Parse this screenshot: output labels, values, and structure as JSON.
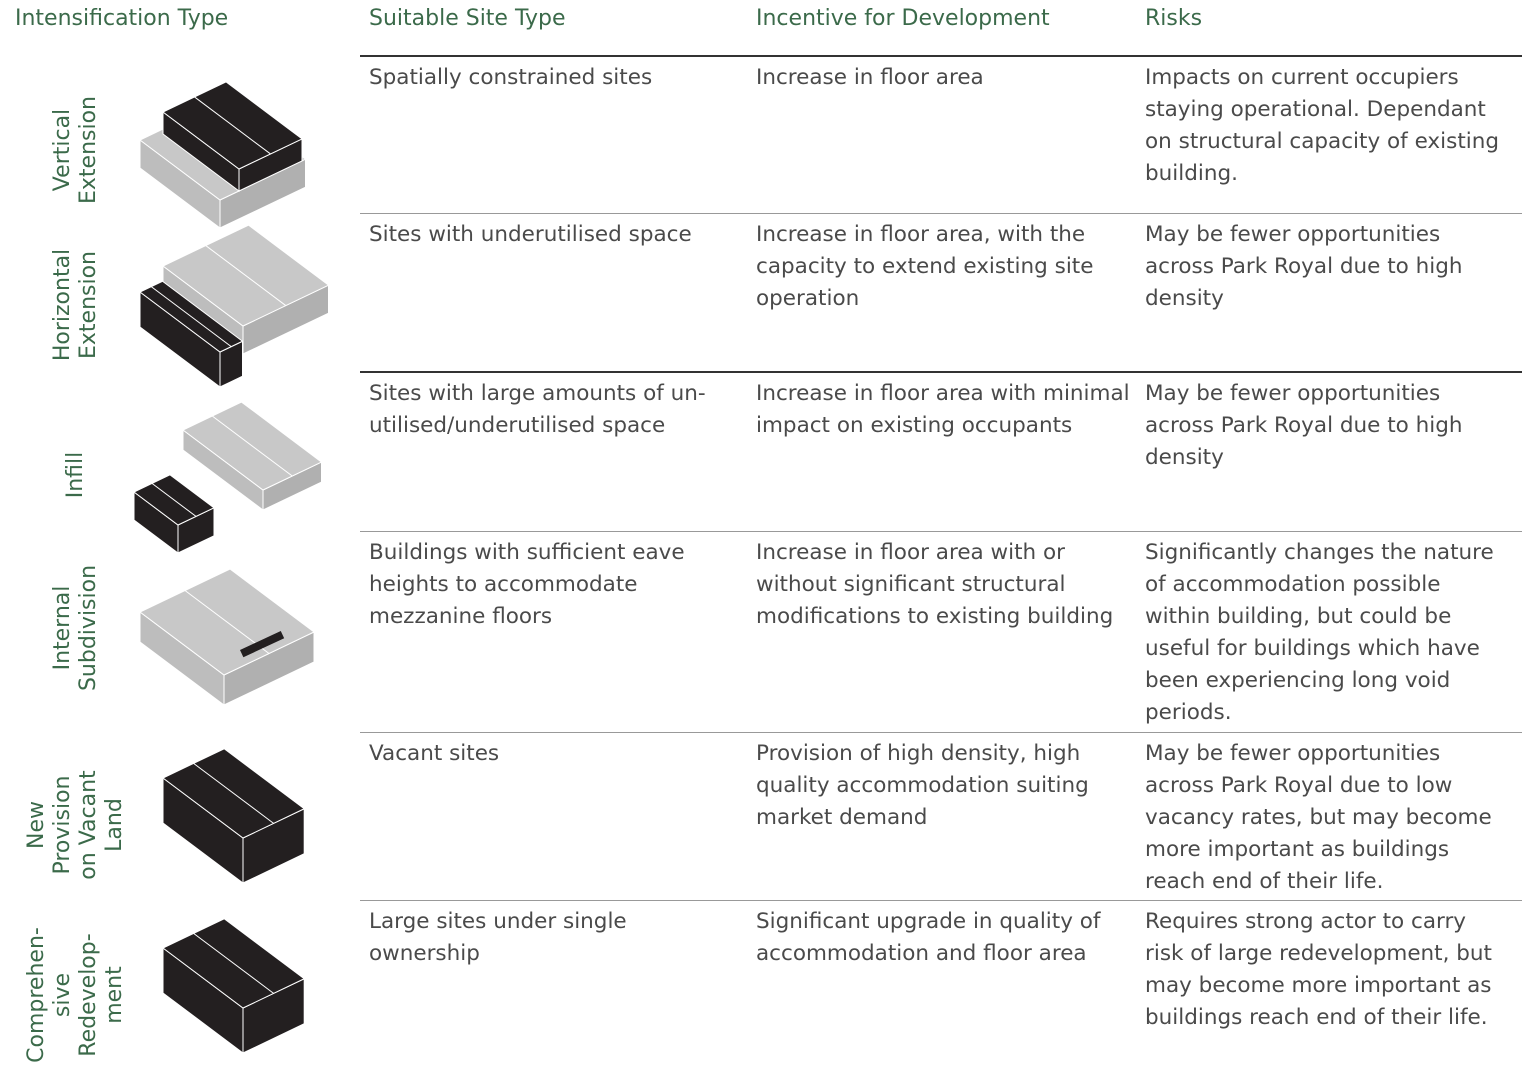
{
  "header": {
    "columns": [
      "Intensification Type",
      "Suitable Site Type",
      "Incentive for Development",
      "Risks"
    ]
  },
  "rows": [
    {
      "label": [
        "Vertical",
        "Extension"
      ],
      "site": "Spatially constrained sites",
      "incentive": "Increase in floor area",
      "risks": "Impacts on current occupiers staying operational. Dependant on structural capacity of existing building."
    },
    {
      "label": [
        "Horizontal",
        "Extension"
      ],
      "site": "Sites with underutilised space",
      "incentive": "Increase in floor area, with the capacity to extend existing site operation",
      "risks": "May be fewer opportunities across Park Royal due to high density"
    },
    {
      "label": [
        "Infill"
      ],
      "site": "Sites with large amounts of un-utilised/underutilised space",
      "incentive": "Increase in floor area with minimal impact on existing occupants",
      "risks": "May be fewer opportunities across Park Royal due to high density"
    },
    {
      "label": [
        "Internal",
        "Subdivision"
      ],
      "site": "Buildings with sufficient eave heights to accommodate mezzanine floors",
      "incentive": "Increase in floor area with or without significant structural modifications to existing building",
      "risks": "Significantly changes the nature of accommodation possible within building, but could be useful for buildings which have been experiencing long void periods."
    },
    {
      "label": [
        "New",
        "Provision",
        "on Vacant",
        "Land"
      ],
      "site": "Vacant sites",
      "incentive": "Provision of high density, high quality accommodation suiting market demand",
      "risks": "May be fewer opportunities across Park Royal due to low vacancy rates, but may become more important as buildings reach end of their life."
    },
    {
      "label": [
        "Comprehen-",
        "sive",
        "Redevelop-",
        "ment"
      ],
      "site": "Large sites under single ownership",
      "incentive": "Significant upgrade in quality of accommodation and floor area",
      "risks": "Requires strong actor to carry risk of large redevelopment, but may become more important as buildings reach end of their life."
    }
  ]
}
